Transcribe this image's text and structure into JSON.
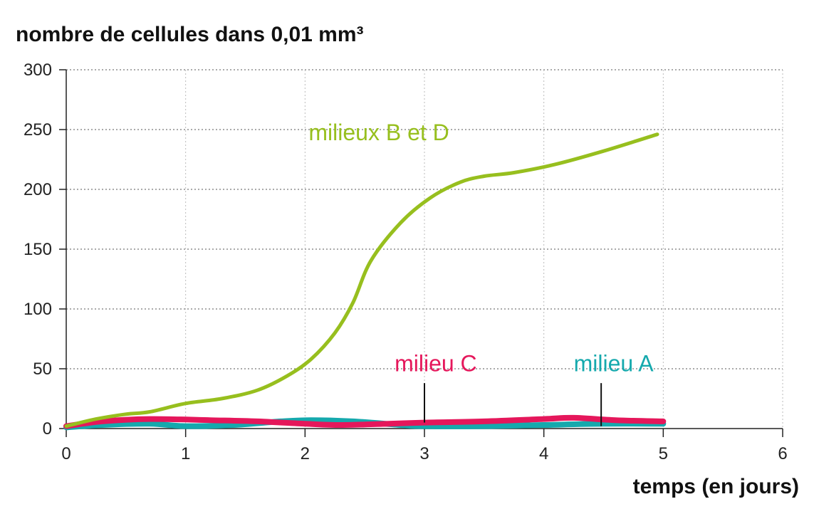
{
  "chart_data": {
    "type": "line",
    "title": "",
    "ylabel": "nombre de cellules dans 0,01 mm³",
    "xlabel": "temps (en jours)",
    "xlim": [
      0,
      6
    ],
    "ylim": [
      0,
      300
    ],
    "xticks": [
      0,
      1,
      2,
      3,
      4,
      5,
      6
    ],
    "yticks": [
      0,
      50,
      100,
      150,
      200,
      250,
      300
    ],
    "grid": true,
    "series": [
      {
        "name": "milieux B et D",
        "color": "#97bf1e",
        "points": [
          [
            0,
            2
          ],
          [
            0.25,
            8
          ],
          [
            0.5,
            12
          ],
          [
            0.7,
            14
          ],
          [
            1,
            21
          ],
          [
            1.3,
            25
          ],
          [
            1.6,
            32
          ],
          [
            1.85,
            44
          ],
          [
            2.05,
            58
          ],
          [
            2.25,
            80
          ],
          [
            2.4,
            105
          ],
          [
            2.55,
            140
          ],
          [
            2.8,
            172
          ],
          [
            3.05,
            193
          ],
          [
            3.3,
            206
          ],
          [
            3.5,
            211
          ],
          [
            3.75,
            214
          ],
          [
            4.1,
            221
          ],
          [
            4.5,
            232
          ],
          [
            4.95,
            246
          ]
        ]
      },
      {
        "name": "milieu C",
        "color": "#e5175b",
        "points": [
          [
            0,
            2
          ],
          [
            0.3,
            6
          ],
          [
            0.7,
            8
          ],
          [
            1.2,
            7
          ],
          [
            1.6,
            6
          ],
          [
            2.0,
            4
          ],
          [
            2.3,
            3
          ],
          [
            2.7,
            4
          ],
          [
            3.0,
            5
          ],
          [
            3.5,
            6
          ],
          [
            4.0,
            8
          ],
          [
            4.25,
            9
          ],
          [
            4.6,
            7
          ],
          [
            5.0,
            6
          ]
        ]
      },
      {
        "name": "milieu A",
        "color": "#15a9ad",
        "points": [
          [
            0,
            1
          ],
          [
            0.3,
            3
          ],
          [
            0.7,
            4
          ],
          [
            1.0,
            2
          ],
          [
            1.4,
            3
          ],
          [
            1.8,
            6
          ],
          [
            2.05,
            7
          ],
          [
            2.4,
            6
          ],
          [
            2.8,
            3
          ],
          [
            3.0,
            2
          ],
          [
            3.5,
            2
          ],
          [
            4.0,
            3
          ],
          [
            4.5,
            4
          ],
          [
            5.0,
            4
          ]
        ]
      }
    ],
    "annotations": [
      {
        "text": "milieux B et D",
        "series": 0,
        "x": 2.03,
        "y": 241,
        "pointer": false
      },
      {
        "text": "milieu C",
        "series": 1,
        "x": 2.75,
        "y": 48,
        "pointer": true,
        "pointer_x": 3.0,
        "pointer_y": [
          38,
          5
        ]
      },
      {
        "text": "milieu A",
        "series": 2,
        "x": 4.25,
        "y": 48,
        "pointer": true,
        "pointer_x": 4.48,
        "pointer_y": [
          38,
          2
        ]
      }
    ]
  }
}
